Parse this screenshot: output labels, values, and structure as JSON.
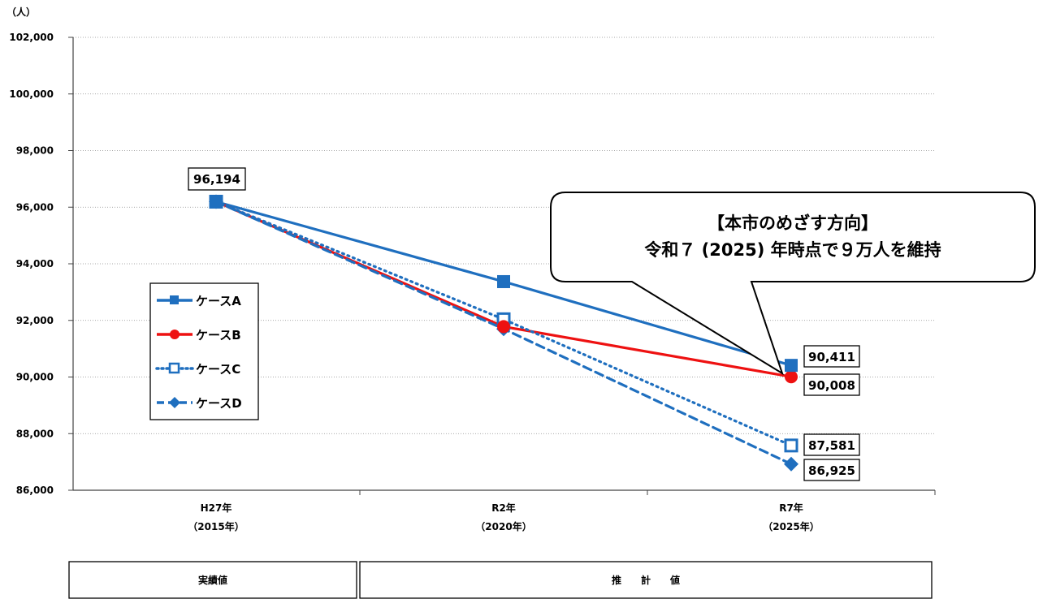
{
  "chart_data": {
    "type": "line",
    "unit_label": "（人）",
    "categories": [
      "H27年",
      "R2年",
      "R7年"
    ],
    "category_sublabels": [
      "（2015年）",
      "（2020年）",
      "（2025年）"
    ],
    "ylim": [
      86000,
      102000
    ],
    "yticks": [
      86000,
      88000,
      90000,
      92000,
      94000,
      96000,
      98000,
      100000,
      102000
    ],
    "ytick_labels": [
      "86,000",
      "88,000",
      "90,000",
      "92,000",
      "94,000",
      "96,000",
      "98,000",
      "100,000",
      "102,000"
    ],
    "grid": true,
    "legend_placement": "left",
    "series": [
      {
        "name": "ケースA",
        "values": [
          96194,
          93370,
          90411
        ],
        "color": "#1f6fbf",
        "style": "solid",
        "marker": "square"
      },
      {
        "name": "ケースB",
        "values": [
          96194,
          91780,
          90008
        ],
        "color": "#ee1111",
        "style": "solid",
        "marker": "circle"
      },
      {
        "name": "ケースC",
        "values": [
          96194,
          92040,
          87581
        ],
        "color": "#1f6fbf",
        "style": "dotted",
        "marker": "square-open"
      },
      {
        "name": "ケースD",
        "values": [
          96194,
          91700,
          86925
        ],
        "color": "#1f6fbf",
        "style": "dashed",
        "marker": "diamond"
      }
    ],
    "data_labels": [
      {
        "text": "96,194"
      },
      {
        "text": "90,411"
      },
      {
        "text": "90,008"
      },
      {
        "text": "87,581"
      },
      {
        "text": "86,925"
      }
    ],
    "callout": {
      "line1": "【本市のめざす方向】",
      "line2": "令和７ (2025) 年時点で９万人を維持"
    },
    "periods": {
      "actual": "実績値",
      "estimate": "推　　計　　値"
    }
  }
}
